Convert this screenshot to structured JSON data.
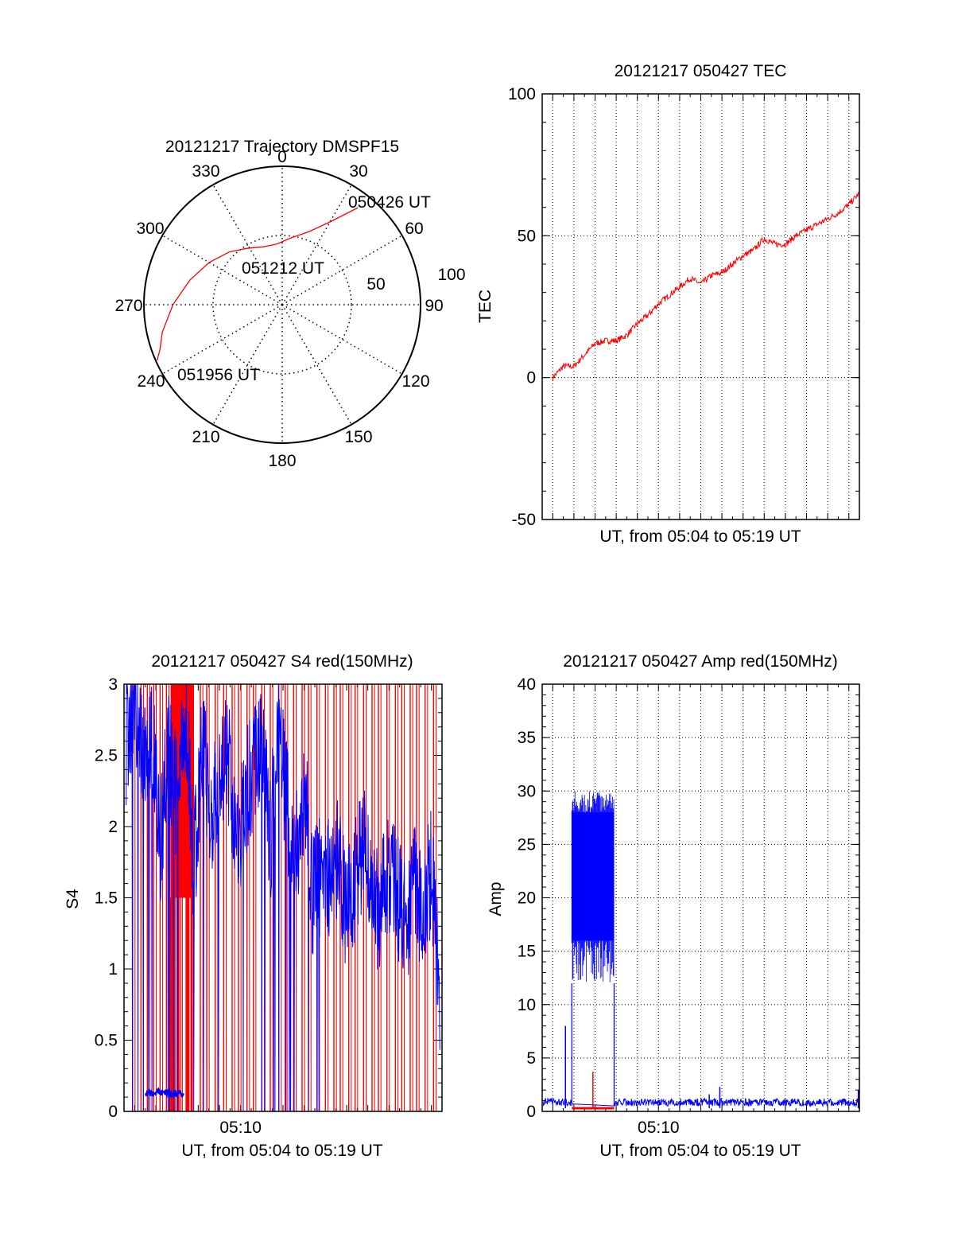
{
  "colors": {
    "red": "#ff0000",
    "blue": "#0000ff",
    "axis": "#000000",
    "grid": "#000000",
    "background": "#ffffff"
  },
  "chart_data": [
    {
      "id": "trajectory",
      "type": "polar",
      "title": "20121217 Trajectory DMSPF15",
      "azimuth_labels": [
        "0",
        "30",
        "60",
        "90",
        "120",
        "150",
        "180",
        "210",
        "240",
        "270",
        "300",
        "330"
      ],
      "radial_labels": [
        "50",
        "100"
      ],
      "rlim": [
        0,
        100
      ],
      "grid": true,
      "annotations": [
        "050426 UT",
        "051212 UT",
        "051956 UT"
      ],
      "track_color": "#ff0000",
      "track": [
        {
          "az": 38,
          "zen": 89
        },
        {
          "az": 30,
          "zen": 69
        },
        {
          "az": 20,
          "zen": 56
        },
        {
          "az": 8,
          "zen": 49
        },
        {
          "az": -5,
          "zen": 44
        },
        {
          "az": -18,
          "zen": 44
        },
        {
          "az": -32,
          "zen": 48
        },
        {
          "az": -45,
          "zen": 54
        },
        {
          "az": -60,
          "zen": 61
        },
        {
          "az": -75,
          "zen": 69
        },
        {
          "az": -90,
          "zen": 79
        },
        {
          "az": -103,
          "zen": 89
        },
        {
          "az": -110,
          "zen": 94
        },
        {
          "az": -114,
          "zen": 99
        }
      ]
    },
    {
      "id": "tec",
      "type": "line",
      "title": "20121217 050427 TEC",
      "xlabel": "UT, from 05:04 to 05:19 UT",
      "ylabel": "TEC",
      "ylim": [
        -50,
        100
      ],
      "yticks": [
        "-50",
        "0",
        "50",
        "100"
      ],
      "xlim_minutes": [
        4.5,
        19.5
      ],
      "grid": true,
      "series": [
        {
          "color": "#ff0000",
          "x_minutes": [
            5.0,
            5.5,
            6.0,
            6.5,
            7.0,
            7.5,
            8.0,
            8.5,
            9.0,
            9.5,
            10.0,
            10.5,
            11.0,
            11.5,
            12.0,
            12.5,
            13.0,
            13.5,
            14.0,
            14.5,
            15.0,
            15.5,
            16.0,
            16.5,
            17.0,
            17.5,
            18.0,
            18.5,
            19.0,
            19.5
          ],
          "values": [
            0,
            4,
            4,
            8,
            12,
            13,
            13,
            15,
            19,
            22,
            26,
            29,
            32,
            35,
            33,
            36,
            37,
            40,
            43,
            45,
            49,
            47,
            47,
            50,
            52,
            54,
            56,
            58,
            61,
            65
          ]
        }
      ]
    },
    {
      "id": "s4",
      "type": "line",
      "title": "20121217 050427 S4 red(150MHz)",
      "xlabel": "UT, from 05:04 to 05:19 UT",
      "ylabel": "S4",
      "ylim": [
        0,
        3
      ],
      "yticks": [
        "0",
        "0.5",
        "1",
        "1.5",
        "2",
        "2.5",
        "3"
      ],
      "xticks": [
        "05:10"
      ],
      "xlim_minutes": [
        4.5,
        19.5
      ],
      "red_band_minutes": [
        6.7,
        7.8
      ],
      "red_spike_minutes": [
        4.9,
        5.3,
        5.6,
        5.9,
        6.2,
        6.5,
        8.1,
        8.4,
        8.8,
        9.2,
        9.6,
        9.9,
        10.3,
        10.6,
        11.0,
        11.4,
        11.8,
        12.1,
        12.5,
        12.9,
        13.2,
        13.6,
        14.0,
        14.4,
        14.7,
        15.1,
        15.4,
        15.8,
        16.2,
        16.5,
        16.9,
        17.3,
        17.6,
        18.0,
        18.3,
        18.7,
        19.1
      ],
      "blue_low_segment": {
        "start_minutes": 5.5,
        "end_minutes": 7.3,
        "value": 0.13
      },
      "series": [
        {
          "color": "#0000ff",
          "x_minutes": [
            4.6,
            5.0,
            5.4,
            5.8,
            6.2,
            6.6,
            7.0,
            7.4,
            7.8,
            8.2,
            8.6,
            9.0,
            9.4,
            9.8,
            10.2,
            10.6,
            11.0,
            11.4,
            11.8,
            12.2,
            12.6,
            13.0,
            13.4,
            13.8,
            14.2,
            14.6,
            15.0,
            15.4,
            15.8,
            16.2,
            16.6,
            17.0,
            17.4,
            17.8,
            18.2,
            18.6,
            19.0,
            19.4
          ],
          "values": [
            2.6,
            2.9,
            2.4,
            2.7,
            1.9,
            2.5,
            2.2,
            2.8,
            1.7,
            2.6,
            2.1,
            2.3,
            2.5,
            1.8,
            2.2,
            2.4,
            2.6,
            1.9,
            2.7,
            2.1,
            1.8,
            2.3,
            1.5,
            1.7,
            1.6,
            1.8,
            1.4,
            1.6,
            1.9,
            1.5,
            1.4,
            1.7,
            1.5,
            1.3,
            1.6,
            1.4,
            1.7,
            0.8
          ]
        }
      ]
    },
    {
      "id": "amp",
      "type": "line",
      "title": "20121217 050427 Amp red(150MHz)",
      "xlabel": "UT, from 05:04 to 05:19 UT",
      "ylabel": "Amp",
      "ylim": [
        0,
        40
      ],
      "yticks": [
        "0",
        "5",
        "10",
        "15",
        "20",
        "25",
        "30",
        "35",
        "40"
      ],
      "xticks": [
        "05:10"
      ],
      "xlim_minutes": [
        4.5,
        19.5
      ],
      "grid": true,
      "series": [
        {
          "color": "#0000ff",
          "burst_minutes": [
            5.9,
            7.9
          ],
          "burst_envelope": {
            "low": 12,
            "high": 30,
            "core_low": 16,
            "core_high": 28
          },
          "baseline": 0.5,
          "spikes": [
            {
              "x_minutes": 5.6,
              "value": 8
            },
            {
              "x_minutes": 12.4,
              "value": 1.6
            },
            {
              "x_minutes": 12.9,
              "value": 2.3
            },
            {
              "x_minutes": 19.45,
              "value": 2.0
            }
          ]
        },
        {
          "color": "#ff0000",
          "segment_minutes": [
            5.9,
            7.9
          ],
          "value": 0.3,
          "spike": {
            "x_minutes": 6.9,
            "value": 3.7
          }
        }
      ]
    }
  ]
}
